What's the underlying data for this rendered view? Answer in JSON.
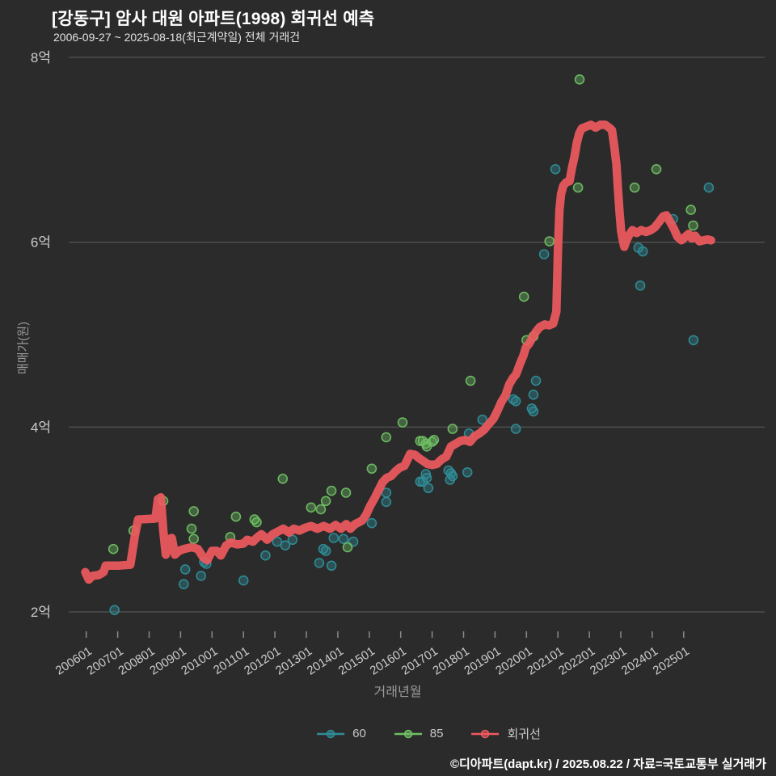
{
  "header": {
    "title": "[강동구] 암사 대원 아파트(1998) 회귀선 예측",
    "subtitle": "2006-09-27 ~ 2025-08-18(최근계약일) 전체 거래건"
  },
  "footer": {
    "credit": "©디아파트(dapt.kr) / 2025.08.22 / 자료=국토교통부 실거래가"
  },
  "chart_data": {
    "type": "scatter",
    "title": "[강동구] 암사 대원 아파트(1998) 회귀선 예측",
    "subtitle": "2006-09-27 ~ 2025-08-18(최근계약일) 전체 거래건",
    "xlabel": "거래년월",
    "ylabel": "매매가(원)",
    "ylim": [
      1.7,
      8.2
    ],
    "xlim": [
      2005.5,
      2026.3
    ],
    "grid": "horizontal-only",
    "legend_position": "bottom",
    "background_color": "#2b2b2b",
    "grid_color": "#5e5e5e",
    "tick_label_color": "#cbcbcb",
    "axis_title_color": "#9c9c9c",
    "yticks": [
      {
        "v": 2,
        "label": "2억"
      },
      {
        "v": 4,
        "label": "4억"
      },
      {
        "v": 6,
        "label": "6억"
      },
      {
        "v": 8,
        "label": "8억"
      }
    ],
    "xticks": [
      {
        "v": 2006,
        "label": "200601"
      },
      {
        "v": 2007,
        "label": "200701"
      },
      {
        "v": 2008,
        "label": "200801"
      },
      {
        "v": 2009,
        "label": "200901"
      },
      {
        "v": 2010,
        "label": "201001"
      },
      {
        "v": 2011,
        "label": "201101"
      },
      {
        "v": 2012,
        "label": "201201"
      },
      {
        "v": 2013,
        "label": "201301"
      },
      {
        "v": 2014,
        "label": "201401"
      },
      {
        "v": 2015,
        "label": "201501"
      },
      {
        "v": 2016,
        "label": "201601"
      },
      {
        "v": 2017,
        "label": "201701"
      },
      {
        "v": 2018,
        "label": "201801"
      },
      {
        "v": 2019,
        "label": "201901"
      },
      {
        "v": 2020,
        "label": "202001"
      },
      {
        "v": 2021,
        "label": "202101"
      },
      {
        "v": 2022,
        "label": "202201"
      },
      {
        "v": 2023,
        "label": "202301"
      },
      {
        "v": 2024,
        "label": "202401"
      },
      {
        "v": 2025,
        "label": "202501"
      }
    ],
    "series": [
      {
        "name": "60",
        "type": "scatter",
        "color": "#2f8d98",
        "points": [
          [
            2006.9,
            2.02
          ],
          [
            2009.1,
            2.3
          ],
          [
            2009.15,
            2.46
          ],
          [
            2009.65,
            2.39
          ],
          [
            2009.75,
            2.54
          ],
          [
            2009.82,
            2.52
          ],
          [
            2011.0,
            2.34
          ],
          [
            2011.7,
            2.61
          ],
          [
            2012.07,
            2.76
          ],
          [
            2012.33,
            2.72
          ],
          [
            2012.56,
            2.78
          ],
          [
            2013.41,
            2.53
          ],
          [
            2013.54,
            2.68
          ],
          [
            2013.62,
            2.66
          ],
          [
            2013.8,
            2.5
          ],
          [
            2013.87,
            2.8
          ],
          [
            2014.18,
            2.79
          ],
          [
            2014.49,
            2.76
          ],
          [
            2015.08,
            2.96
          ],
          [
            2015.54,
            3.29
          ],
          [
            2015.54,
            3.19
          ],
          [
            2016.62,
            3.41
          ],
          [
            2016.83,
            3.45
          ],
          [
            2016.7,
            3.41
          ],
          [
            2016.8,
            3.49
          ],
          [
            2016.88,
            3.34
          ],
          [
            2017.52,
            3.53
          ],
          [
            2017.6,
            3.5
          ],
          [
            2017.65,
            3.47
          ],
          [
            2017.57,
            3.43
          ],
          [
            2018.12,
            3.51
          ],
          [
            2018.17,
            3.93
          ],
          [
            2018.6,
            4.08
          ],
          [
            2019.58,
            4.3
          ],
          [
            2019.66,
            4.28
          ],
          [
            2019.66,
            3.98
          ],
          [
            2020.17,
            4.2
          ],
          [
            2020.22,
            4.17
          ],
          [
            2020.22,
            4.35
          ],
          [
            2020.3,
            4.5
          ],
          [
            2020.56,
            5.87
          ],
          [
            2020.92,
            6.79
          ],
          [
            2023.56,
            5.94
          ],
          [
            2023.7,
            5.9
          ],
          [
            2023.62,
            5.53
          ],
          [
            2024.66,
            6.25
          ],
          [
            2025.31,
            4.94
          ],
          [
            2025.8,
            6.59
          ]
        ]
      },
      {
        "name": "85",
        "type": "scatter",
        "color": "#6fbf63",
        "points": [
          [
            2006.86,
            2.68
          ],
          [
            2007.5,
            2.88
          ],
          [
            2008.45,
            3.2
          ],
          [
            2009.35,
            2.9
          ],
          [
            2009.42,
            3.09
          ],
          [
            2009.42,
            2.79
          ],
          [
            2010.58,
            2.81
          ],
          [
            2010.76,
            3.03
          ],
          [
            2011.35,
            3.0
          ],
          [
            2011.42,
            2.97
          ],
          [
            2012.25,
            3.44
          ],
          [
            2013.15,
            3.13
          ],
          [
            2013.46,
            3.11
          ],
          [
            2013.62,
            3.2
          ],
          [
            2013.8,
            3.31
          ],
          [
            2014.26,
            3.29
          ],
          [
            2014.31,
            2.7
          ],
          [
            2015.08,
            3.55
          ],
          [
            2015.54,
            3.89
          ],
          [
            2016.06,
            4.05
          ],
          [
            2016.62,
            3.85
          ],
          [
            2016.8,
            3.82
          ],
          [
            2016.7,
            3.85
          ],
          [
            2016.83,
            3.79
          ],
          [
            2017.0,
            3.84
          ],
          [
            2017.06,
            3.86
          ],
          [
            2017.65,
            3.98
          ],
          [
            2018.22,
            4.5
          ],
          [
            2019.92,
            5.41
          ],
          [
            2020.0,
            4.94
          ],
          [
            2020.22,
            4.98
          ],
          [
            2020.73,
            6.01
          ],
          [
            2021.69,
            7.76
          ],
          [
            2021.64,
            6.59
          ],
          [
            2023.44,
            6.59
          ],
          [
            2024.13,
            6.79
          ],
          [
            2025.23,
            6.35
          ],
          [
            2025.3,
            6.18
          ]
        ]
      },
      {
        "name": "회귀선",
        "type": "line",
        "color": "#ef5a5e",
        "points": [
          [
            2005.97,
            2.43
          ],
          [
            2006.08,
            2.35
          ],
          [
            2006.2,
            2.39
          ],
          [
            2006.4,
            2.4
          ],
          [
            2006.55,
            2.43
          ],
          [
            2006.62,
            2.5
          ],
          [
            2007.0,
            2.5
          ],
          [
            2007.4,
            2.51
          ],
          [
            2007.55,
            2.83
          ],
          [
            2007.65,
            3.0
          ],
          [
            2008.2,
            3.01
          ],
          [
            2008.28,
            3.22
          ],
          [
            2008.37,
            3.24
          ],
          [
            2008.45,
            2.88
          ],
          [
            2008.53,
            2.62
          ],
          [
            2008.65,
            2.79
          ],
          [
            2008.72,
            2.8
          ],
          [
            2008.82,
            2.62
          ],
          [
            2008.95,
            2.66
          ],
          [
            2009.1,
            2.68
          ],
          [
            2009.35,
            2.7
          ],
          [
            2009.55,
            2.68
          ],
          [
            2009.72,
            2.59
          ],
          [
            2009.85,
            2.56
          ],
          [
            2010.0,
            2.66
          ],
          [
            2010.15,
            2.66
          ],
          [
            2010.28,
            2.61
          ],
          [
            2010.45,
            2.72
          ],
          [
            2010.6,
            2.75
          ],
          [
            2010.8,
            2.73
          ],
          [
            2011.0,
            2.74
          ],
          [
            2011.12,
            2.78
          ],
          [
            2011.3,
            2.76
          ],
          [
            2011.45,
            2.81
          ],
          [
            2011.57,
            2.84
          ],
          [
            2011.75,
            2.78
          ],
          [
            2011.93,
            2.84
          ],
          [
            2012.1,
            2.87
          ],
          [
            2012.27,
            2.9
          ],
          [
            2012.45,
            2.86
          ],
          [
            2012.6,
            2.9
          ],
          [
            2012.78,
            2.88
          ],
          [
            2012.97,
            2.91
          ],
          [
            2013.15,
            2.93
          ],
          [
            2013.35,
            2.9
          ],
          [
            2013.55,
            2.93
          ],
          [
            2013.75,
            2.9
          ],
          [
            2013.93,
            2.94
          ],
          [
            2014.1,
            2.9
          ],
          [
            2014.27,
            2.95
          ],
          [
            2014.4,
            2.9
          ],
          [
            2014.55,
            2.95
          ],
          [
            2014.67,
            2.97
          ],
          [
            2014.78,
            2.99
          ],
          [
            2014.9,
            3.05
          ],
          [
            2015.02,
            3.14
          ],
          [
            2015.17,
            3.23
          ],
          [
            2015.3,
            3.32
          ],
          [
            2015.42,
            3.4
          ],
          [
            2015.55,
            3.45
          ],
          [
            2015.7,
            3.47
          ],
          [
            2015.83,
            3.52
          ],
          [
            2015.97,
            3.56
          ],
          [
            2016.12,
            3.58
          ],
          [
            2016.3,
            3.71
          ],
          [
            2016.45,
            3.7
          ],
          [
            2016.6,
            3.66
          ],
          [
            2016.73,
            3.63
          ],
          [
            2016.85,
            3.6
          ],
          [
            2017.0,
            3.59
          ],
          [
            2017.15,
            3.6
          ],
          [
            2017.3,
            3.65
          ],
          [
            2017.45,
            3.68
          ],
          [
            2017.6,
            3.79
          ],
          [
            2017.75,
            3.82
          ],
          [
            2017.9,
            3.85
          ],
          [
            2018.05,
            3.86
          ],
          [
            2018.2,
            3.84
          ],
          [
            2018.35,
            3.9
          ],
          [
            2018.5,
            3.93
          ],
          [
            2018.65,
            3.97
          ],
          [
            2018.8,
            4.03
          ],
          [
            2018.95,
            4.09
          ],
          [
            2019.07,
            4.17
          ],
          [
            2019.2,
            4.27
          ],
          [
            2019.33,
            4.34
          ],
          [
            2019.45,
            4.46
          ],
          [
            2019.57,
            4.53
          ],
          [
            2019.67,
            4.57
          ],
          [
            2019.8,
            4.69
          ],
          [
            2019.9,
            4.77
          ],
          [
            2019.98,
            4.86
          ],
          [
            2020.08,
            4.9
          ],
          [
            2020.18,
            4.96
          ],
          [
            2020.3,
            5.03
          ],
          [
            2020.42,
            5.08
          ],
          [
            2020.58,
            5.11
          ],
          [
            2020.72,
            5.1
          ],
          [
            2020.85,
            5.12
          ],
          [
            2020.95,
            5.25
          ],
          [
            2021.0,
            5.9
          ],
          [
            2021.05,
            6.35
          ],
          [
            2021.1,
            6.52
          ],
          [
            2021.17,
            6.61
          ],
          [
            2021.27,
            6.65
          ],
          [
            2021.37,
            6.66
          ],
          [
            2021.45,
            6.81
          ],
          [
            2021.53,
            6.93
          ],
          [
            2021.6,
            7.07
          ],
          [
            2021.68,
            7.18
          ],
          [
            2021.76,
            7.23
          ],
          [
            2021.9,
            7.25
          ],
          [
            2022.05,
            7.27
          ],
          [
            2022.2,
            7.24
          ],
          [
            2022.35,
            7.27
          ],
          [
            2022.5,
            7.27
          ],
          [
            2022.63,
            7.24
          ],
          [
            2022.72,
            7.21
          ],
          [
            2022.8,
            7.02
          ],
          [
            2022.86,
            6.84
          ],
          [
            2022.91,
            6.57
          ],
          [
            2022.96,
            6.33
          ],
          [
            2023.01,
            6.12
          ],
          [
            2023.06,
            6.03
          ],
          [
            2023.11,
            5.95
          ],
          [
            2023.18,
            6.02
          ],
          [
            2023.27,
            6.08
          ],
          [
            2023.37,
            6.13
          ],
          [
            2023.5,
            6.1
          ],
          [
            2023.65,
            6.13
          ],
          [
            2023.8,
            6.11
          ],
          [
            2023.95,
            6.13
          ],
          [
            2024.08,
            6.16
          ],
          [
            2024.22,
            6.22
          ],
          [
            2024.35,
            6.28
          ],
          [
            2024.45,
            6.29
          ],
          [
            2024.55,
            6.23
          ],
          [
            2024.68,
            6.15
          ],
          [
            2024.8,
            6.06
          ],
          [
            2024.93,
            6.02
          ],
          [
            2025.06,
            6.06
          ],
          [
            2025.16,
            6.09
          ],
          [
            2025.26,
            6.04
          ],
          [
            2025.36,
            6.07
          ],
          [
            2025.5,
            6.01
          ],
          [
            2025.63,
            6.02
          ],
          [
            2025.76,
            6.03
          ],
          [
            2025.87,
            6.02
          ]
        ]
      }
    ]
  }
}
